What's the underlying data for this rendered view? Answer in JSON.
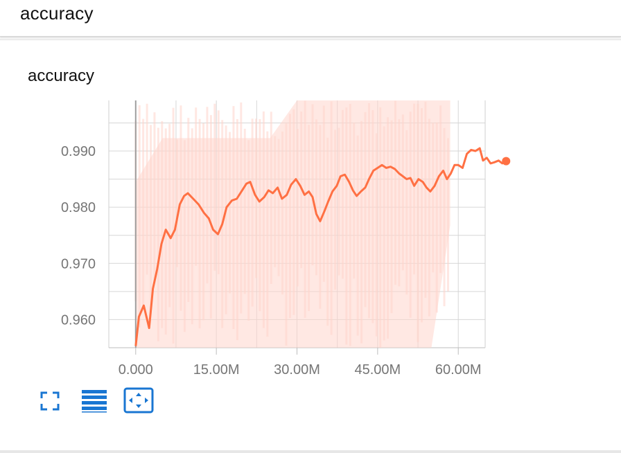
{
  "header": {
    "title": "accuracy"
  },
  "card": {
    "title": "accuracy"
  },
  "toolbar": {
    "buttons": [
      {
        "icon": "fit-domain-icon"
      },
      {
        "icon": "data-table-icon"
      },
      {
        "icon": "pan-zoom-icon"
      }
    ],
    "icon_color": "#1976d2"
  },
  "colors": {
    "smoothed_line": "#ff7043",
    "raw_line": "#ffd5cc",
    "grid": "#d6d6d6",
    "axis_text": "#757575"
  },
  "chart_data": {
    "type": "line",
    "title": "accuracy",
    "xlabel": "",
    "ylabel": "",
    "xlim": [
      -5000000,
      65000000
    ],
    "ylim": [
      0.955,
      0.999
    ],
    "x_ticks": [
      0,
      15000000,
      30000000,
      45000000,
      60000000
    ],
    "x_tick_labels": [
      "0.000",
      "15.00M",
      "30.00M",
      "45.00M",
      "60.00M"
    ],
    "y_ticks": [
      0.96,
      0.97,
      0.98,
      0.99
    ],
    "y_tick_labels": [
      "0.960",
      "0.970",
      "0.980",
      "0.990"
    ],
    "grid": true,
    "legend": "none",
    "raw_band": {
      "x": [
        0,
        5000000,
        10000000,
        15000000,
        20000000,
        25000000,
        30000000,
        35000000,
        40000000,
        45000000,
        50000000,
        55000000,
        58500000
      ],
      "high": [
        0.9845,
        0.9923,
        0.9923,
        0.9923,
        0.9923,
        0.9923,
        0.999,
        0.999,
        0.999,
        0.999,
        0.999,
        0.999,
        0.999
      ],
      "low": [
        0.955,
        0.955,
        0.955,
        0.955,
        0.955,
        0.955,
        0.955,
        0.955,
        0.955,
        0.955,
        0.955,
        0.955,
        0.9768
      ]
    },
    "series": [
      {
        "values": [
          [
            0,
            0.9553
          ],
          [
            600000,
            0.9605
          ],
          [
            1500000,
            0.9625
          ],
          [
            2500000,
            0.9585
          ],
          [
            3200000,
            0.9655
          ],
          [
            4000000,
            0.969
          ],
          [
            4800000,
            0.9735
          ],
          [
            5600000,
            0.976
          ],
          [
            6500000,
            0.9745
          ],
          [
            7300000,
            0.976
          ],
          [
            8200000,
            0.9805
          ],
          [
            9000000,
            0.982
          ],
          [
            9700000,
            0.9825
          ],
          [
            10700000,
            0.9815
          ],
          [
            11700000,
            0.9805
          ],
          [
            12700000,
            0.979
          ],
          [
            13600000,
            0.978
          ],
          [
            14400000,
            0.976
          ],
          [
            15300000,
            0.9752
          ],
          [
            16100000,
            0.977
          ],
          [
            16900000,
            0.98
          ],
          [
            17900000,
            0.9812
          ],
          [
            18800000,
            0.9815
          ],
          [
            19800000,
            0.983
          ],
          [
            20600000,
            0.9842
          ],
          [
            21300000,
            0.9845
          ],
          [
            22200000,
            0.9822
          ],
          [
            23000000,
            0.981
          ],
          [
            23900000,
            0.9818
          ],
          [
            24700000,
            0.983
          ],
          [
            25500000,
            0.9825
          ],
          [
            26400000,
            0.9835
          ],
          [
            27200000,
            0.9815
          ],
          [
            28100000,
            0.9822
          ],
          [
            28900000,
            0.984
          ],
          [
            29800000,
            0.985
          ],
          [
            30600000,
            0.9838
          ],
          [
            31400000,
            0.9822
          ],
          [
            32200000,
            0.9828
          ],
          [
            32900000,
            0.9818
          ],
          [
            33600000,
            0.9788
          ],
          [
            34300000,
            0.9775
          ],
          [
            35100000,
            0.9793
          ],
          [
            35800000,
            0.981
          ],
          [
            36600000,
            0.9828
          ],
          [
            37400000,
            0.9838
          ],
          [
            38100000,
            0.9855
          ],
          [
            38900000,
            0.9858
          ],
          [
            39700000,
            0.9845
          ],
          [
            40400000,
            0.983
          ],
          [
            41100000,
            0.982
          ],
          [
            41900000,
            0.9828
          ],
          [
            42700000,
            0.9835
          ],
          [
            43400000,
            0.985
          ],
          [
            44200000,
            0.9865
          ],
          [
            45000000,
            0.987
          ],
          [
            45800000,
            0.9875
          ],
          [
            46600000,
            0.987
          ],
          [
            47400000,
            0.9872
          ],
          [
            48200000,
            0.9868
          ],
          [
            49000000,
            0.986
          ],
          [
            49700000,
            0.9855
          ],
          [
            50400000,
            0.985
          ],
          [
            51100000,
            0.9852
          ],
          [
            51800000,
            0.9838
          ],
          [
            52600000,
            0.985
          ],
          [
            53400000,
            0.9845
          ],
          [
            54100000,
            0.9835
          ],
          [
            54800000,
            0.9828
          ],
          [
            55600000,
            0.9838
          ],
          [
            56400000,
            0.9855
          ],
          [
            57200000,
            0.9865
          ],
          [
            57900000,
            0.985
          ],
          [
            58600000,
            0.986
          ],
          [
            59300000,
            0.9875
          ],
          [
            60000000,
            0.9875
          ],
          [
            60800000,
            0.987
          ],
          [
            61600000,
            0.9895
          ],
          [
            62400000,
            0.9902
          ],
          [
            63200000,
            0.99
          ],
          [
            64000000,
            0.9905
          ],
          [
            64600000,
            0.9883
          ],
          [
            65300000,
            0.9888
          ],
          [
            66000000,
            0.9878
          ],
          [
            66700000,
            0.988
          ],
          [
            67500000,
            0.9883
          ],
          [
            68200000,
            0.9878
          ],
          [
            68900000,
            0.9882
          ]
        ]
      }
    ]
  }
}
